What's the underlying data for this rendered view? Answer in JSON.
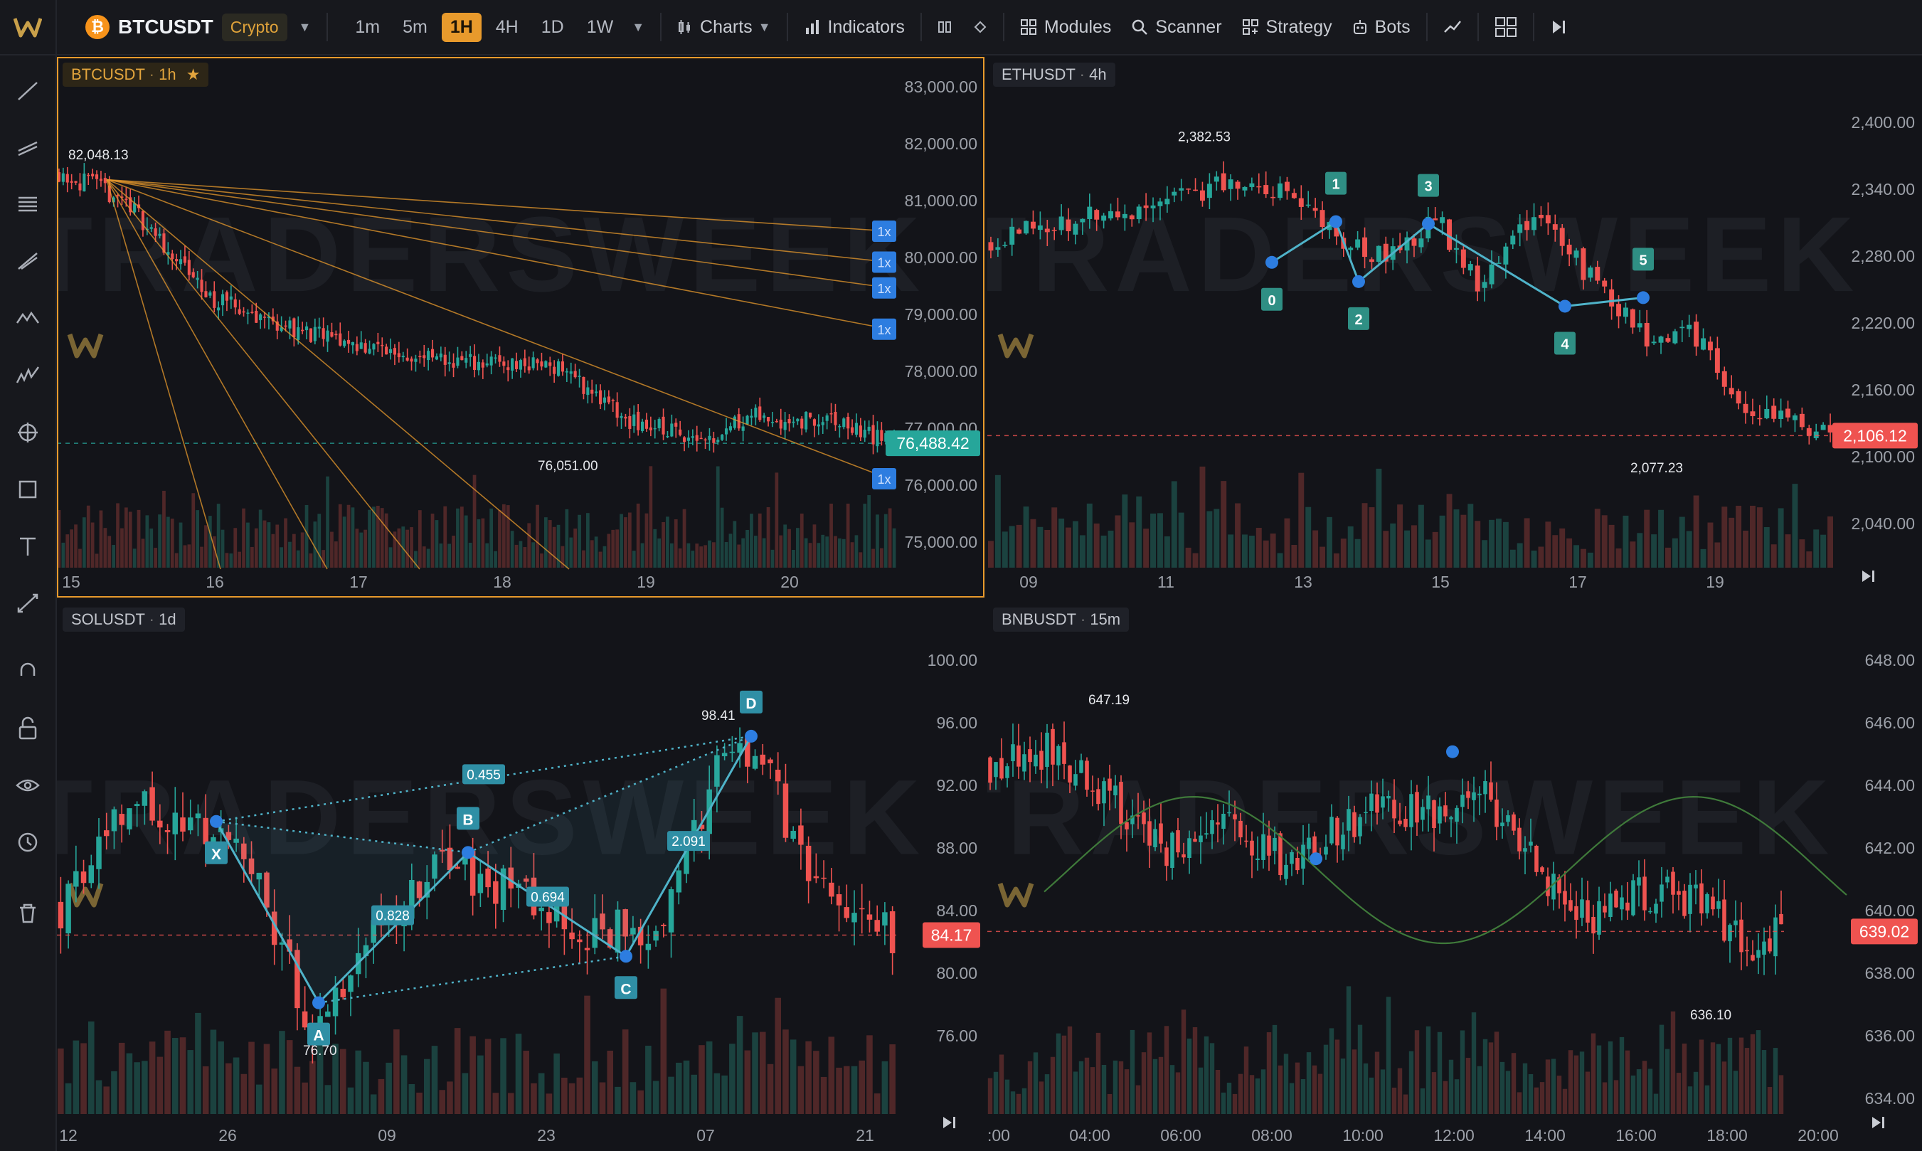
{
  "topbar": {
    "symbol": "BTCUSDT",
    "market": "Crypto",
    "timeframes": [
      "1m",
      "5m",
      "1H",
      "4H",
      "1D",
      "1W"
    ],
    "active_timeframe": "1H",
    "menu": {
      "charts": "Charts",
      "indicators": "Indicators",
      "modules": "Modules",
      "scanner": "Scanner",
      "strategy": "Strategy",
      "bots": "Bots"
    }
  },
  "sidebar": {
    "tools": [
      "trendline-icon",
      "parallel-channel-icon",
      "fib-retracement-icon",
      "brush-icon",
      "pattern-icon",
      "elliott-icon",
      "crosshair-target-icon",
      "rectangle-icon",
      "text-icon",
      "measure-icon",
      "magnet-icon",
      "lock-icon",
      "eye-icon",
      "clock-icon",
      "trash-icon"
    ]
  },
  "watermark": "TRADERSWEEK",
  "charts": {
    "btc": {
      "title": "BTCUSDT",
      "interval": "1h",
      "y_ticks": [
        "83,000.00",
        "82,000.00",
        "81,000.00",
        "80,000.00",
        "79,000.00",
        "78,000.00",
        "77,000.00",
        "76,000.00",
        "75,000.00"
      ],
      "x_ticks": [
        "15",
        "16",
        "17",
        "18",
        "19",
        "20"
      ],
      "current_price": "76,488.42",
      "high_label": "82,048.13",
      "low_label": "76,051.00",
      "fan_tag": "1x",
      "accent": "#e89a2c"
    },
    "eth": {
      "title": "ETHUSDT",
      "interval": "4h",
      "y_ticks": [
        "2,400.00",
        "2,340.00",
        "2,280.00",
        "2,220.00",
        "2,160.00",
        "2,100.00",
        "2,040.00"
      ],
      "x_ticks": [
        "09",
        "11",
        "13",
        "15",
        "17",
        "19"
      ],
      "current_price": "2,106.12",
      "high_label": "2,382.53",
      "low_label": "2,077.23",
      "wave_labels": [
        "0",
        "1",
        "2",
        "3",
        "4",
        "5"
      ]
    },
    "sol": {
      "title": "SOLUSDT",
      "interval": "1d",
      "y_ticks": [
        "100.00",
        "96.00",
        "92.00",
        "88.00",
        "84.00",
        "80.00",
        "76.00"
      ],
      "x_ticks": [
        "12",
        "26",
        "09",
        "23",
        "07",
        "21"
      ],
      "current_price": "84.17",
      "high_label": "98.41",
      "low_label": "76.70",
      "pattern_points": [
        "X",
        "A",
        "B",
        "C",
        "D"
      ],
      "ratios": {
        "xb": "0.455",
        "ab": "0.828",
        "bc": "0.694",
        "cd": "2.091"
      }
    },
    "bnb": {
      "title": "BNBUSDT",
      "interval": "15m",
      "y_ticks": [
        "648.00",
        "646.00",
        "644.00",
        "642.00",
        "640.00",
        "638.00",
        "636.00",
        "634.00"
      ],
      "x_ticks": [
        ":00",
        "04:00",
        "06:00",
        "08:00",
        "10:00",
        "12:00",
        "14:00",
        "16:00",
        "18:00",
        "20:00"
      ],
      "current_price": "639.02",
      "high_label": "647.19",
      "low_label": "636.10"
    }
  },
  "colors": {
    "up": "#26a69a",
    "down": "#ef5350",
    "accent": "#e89a2c",
    "pattern": "#4fb3c9",
    "tag_blue": "#2d7de0"
  }
}
